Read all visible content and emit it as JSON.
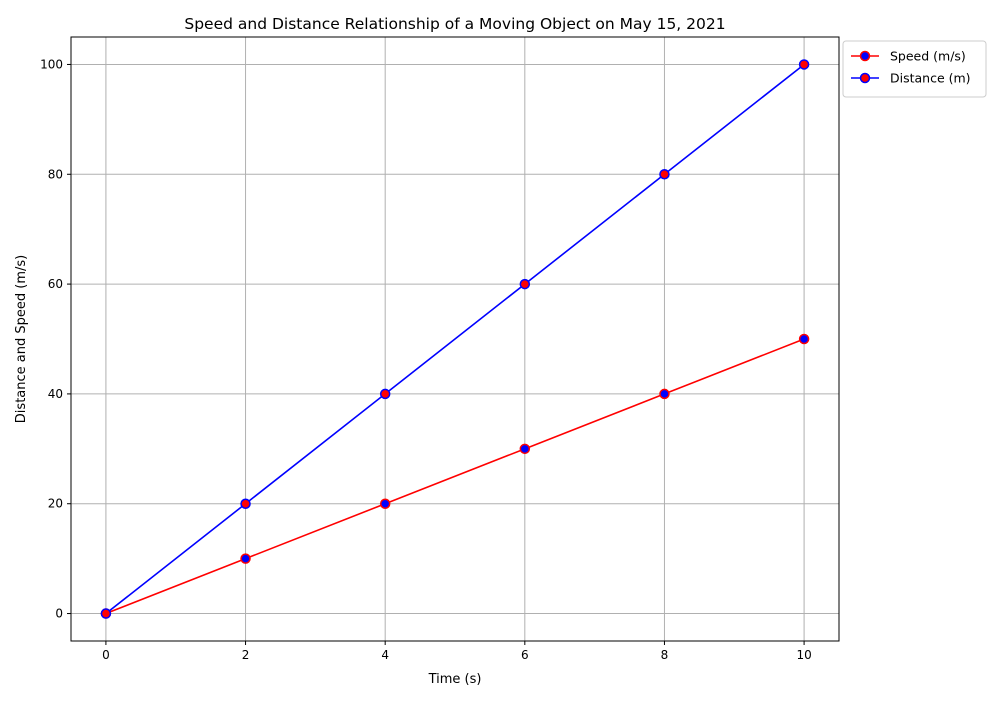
{
  "chart_data": {
    "type": "line",
    "title": "Speed and Distance Relationship of a Moving Object on May 15, 2021",
    "xlabel": "Time (s)",
    "ylabel": "Distance and Speed (m/s)",
    "x": [
      0,
      2,
      4,
      6,
      8,
      10
    ],
    "xlim": [
      -0.5,
      10.5
    ],
    "ylim": [
      -5,
      105
    ],
    "xticks": [
      0,
      2,
      4,
      6,
      8,
      10
    ],
    "yticks": [
      0,
      20,
      40,
      60,
      80,
      100
    ],
    "grid": true,
    "legend_position": "outside-top-right",
    "series": [
      {
        "name": "Speed (m/s)",
        "values": [
          0,
          10,
          20,
          30,
          40,
          50
        ],
        "line_color": "#ff0000",
        "marker_face": "#0000ff",
        "marker_edge": "#ff0000"
      },
      {
        "name": "Distance (m)",
        "values": [
          0,
          20,
          40,
          60,
          80,
          100
        ],
        "line_color": "#0000ff",
        "marker_face": "#ff0000",
        "marker_edge": "#0000ff"
      }
    ],
    "grid_color": "#b0b0b0"
  }
}
